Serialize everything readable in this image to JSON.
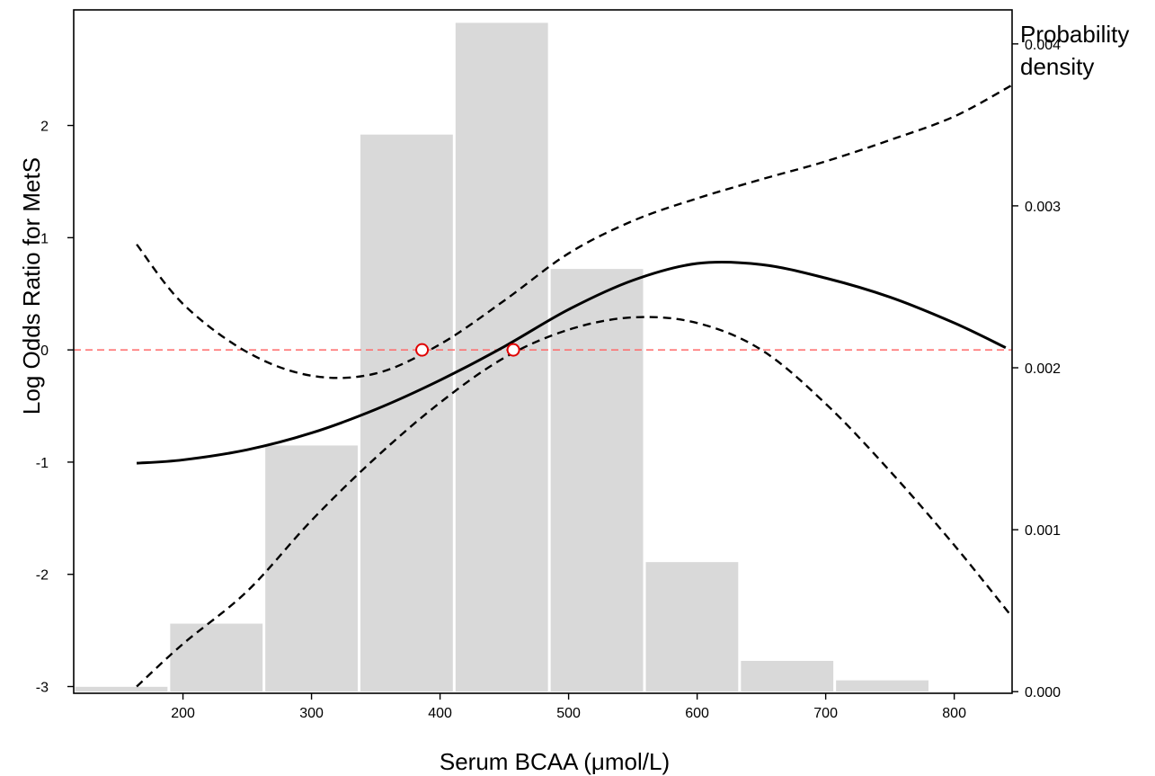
{
  "chart_data": {
    "type": "line",
    "title": "",
    "xlabel": "Serum BCAA  (μmol/L)",
    "ylabel": "Log Odds  Ratio for MetS",
    "y2label_line1": "Probability",
    "y2label_line2": "density",
    "xlim": [
      115,
      845
    ],
    "ylim": [
      -3.06,
      3.03
    ],
    "y2lim": [
      -1e-05,
      0.00421
    ],
    "x_ticks": [
      200,
      300,
      400,
      500,
      600,
      700,
      800
    ],
    "x_tick_labels": [
      "200",
      "300",
      "400",
      "500",
      "600",
      "700",
      "800"
    ],
    "y_ticks": [
      -3,
      -2,
      -1,
      0,
      1,
      2
    ],
    "y_tick_labels": [
      "-3",
      "-2",
      "-1",
      "0",
      "1",
      "2"
    ],
    "y2_ticks": [
      0.0,
      0.001,
      0.002,
      0.003,
      0.004
    ],
    "y2_tick_labels": [
      "0.000",
      "0.001",
      "0.002",
      "0.003",
      "0.004"
    ],
    "reference_line_y": 0,
    "grid": false,
    "colors": {
      "histogram": "#d9d9d9",
      "lines": "#000000",
      "reference": "#ff6b6b",
      "marker_edge": "#e00000"
    },
    "histogram": {
      "bin_edges": [
        115,
        189,
        263,
        337,
        411,
        485,
        559,
        633,
        707,
        781
      ],
      "density": [
        3e-05,
        0.00042,
        0.00152,
        0.00344,
        0.00413,
        0.00261,
        0.0008,
        0.00019,
        7e-05
      ]
    },
    "series": [
      {
        "role": "estimate",
        "style": "solid",
        "x": [
          164,
          200,
          250,
          300,
          350,
          400,
          450,
          500,
          550,
          600,
          650,
          700,
          750,
          800,
          840
        ],
        "y": [
          -1.01,
          -0.98,
          -0.89,
          -0.74,
          -0.53,
          -0.27,
          0.03,
          0.36,
          0.62,
          0.77,
          0.76,
          0.64,
          0.47,
          0.24,
          0.02
        ]
      },
      {
        "role": "upper_ci",
        "style": "dashed",
        "x": [
          164,
          200,
          250,
          300,
          350,
          400,
          450,
          500,
          550,
          600,
          650,
          700,
          750,
          800,
          845
        ],
        "y": [
          0.94,
          0.41,
          -0.02,
          -0.23,
          -0.21,
          0.05,
          0.44,
          0.86,
          1.15,
          1.35,
          1.52,
          1.68,
          1.87,
          2.08,
          2.36
        ]
      },
      {
        "role": "lower_ci",
        "style": "dashed",
        "x": [
          164,
          200,
          250,
          300,
          350,
          400,
          450,
          500,
          550,
          600,
          650,
          700,
          750,
          800,
          845
        ],
        "y": [
          -3.0,
          -2.62,
          -2.15,
          -1.52,
          -0.96,
          -0.47,
          -0.07,
          0.18,
          0.29,
          0.24,
          0.0,
          -0.48,
          -1.08,
          -1.74,
          -2.38
        ]
      }
    ],
    "markers": [
      {
        "x": 386,
        "y": 0
      },
      {
        "x": 457,
        "y": 0
      }
    ]
  }
}
